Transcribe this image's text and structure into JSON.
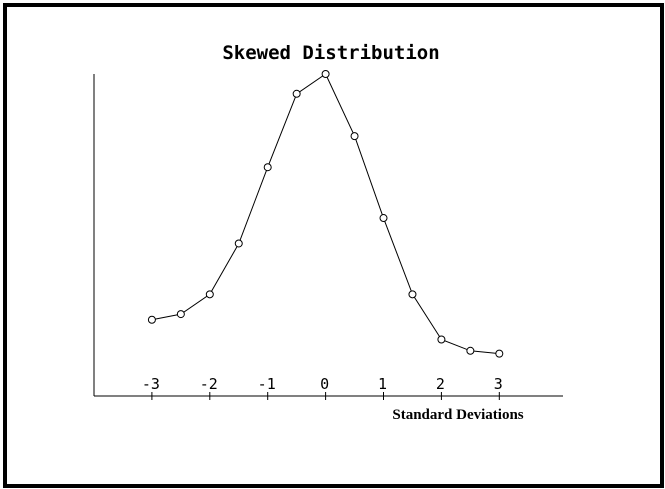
{
  "chart_data": {
    "type": "line",
    "title": "Skewed Distribution",
    "xlabel": "Standard Deviations",
    "ylabel": "",
    "x_ticks": [
      "-3",
      "-2",
      "-1",
      "0",
      "1",
      "2",
      "3"
    ],
    "xlim": [
      -4.0,
      4.1
    ],
    "ylim": [
      -0.14,
      1.0
    ],
    "grid": false,
    "markers": "open-circle",
    "colors": {
      "line": "#000000",
      "marker": "#000000",
      "background": "#ffffff",
      "frame": "#000000"
    },
    "series": [
      {
        "x": [
          -3,
          -2.5,
          -2,
          -1.5,
          -1,
          -0.5,
          0,
          0.5,
          1,
          1.5,
          2,
          2.5,
          3
        ],
        "y": [
          0.13,
          0.15,
          0.22,
          0.4,
          0.67,
          0.93,
          1.0,
          0.78,
          0.49,
          0.22,
          0.06,
          0.02,
          0.01
        ]
      }
    ]
  }
}
